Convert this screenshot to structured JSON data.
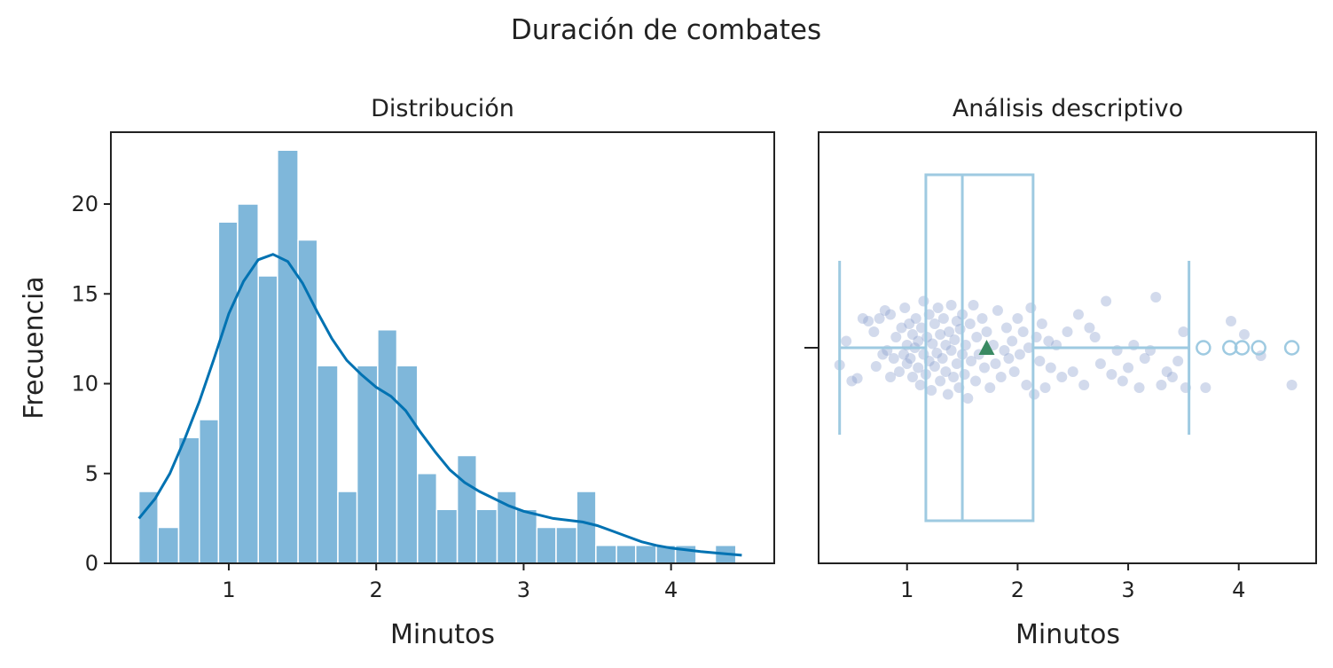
{
  "figure": {
    "suptitle": "Duración de combates"
  },
  "chart_data": [
    {
      "type": "bar",
      "panel": "left",
      "title": "Distribución",
      "xlabel": "Minutos",
      "ylabel": "Frecuencia",
      "xlim": [
        0.2,
        4.7
      ],
      "ylim": [
        0,
        24
      ],
      "xticks": [
        1,
        2,
        3,
        4
      ],
      "yticks": [
        0,
        5,
        10,
        15,
        20
      ],
      "bar_color": "#7fb7da",
      "bins": [
        {
          "x0": 0.39,
          "x1": 0.52,
          "count": 4
        },
        {
          "x0": 0.52,
          "x1": 0.66,
          "count": 2
        },
        {
          "x0": 0.66,
          "x1": 0.8,
          "count": 7
        },
        {
          "x0": 0.8,
          "x1": 0.93,
          "count": 8
        },
        {
          "x0": 0.93,
          "x1": 1.06,
          "count": 19
        },
        {
          "x0": 1.06,
          "x1": 1.2,
          "count": 20
        },
        {
          "x0": 1.2,
          "x1": 1.33,
          "count": 16
        },
        {
          "x0": 1.33,
          "x1": 1.47,
          "count": 23
        },
        {
          "x0": 1.47,
          "x1": 1.6,
          "count": 18
        },
        {
          "x0": 1.6,
          "x1": 1.74,
          "count": 11
        },
        {
          "x0": 1.74,
          "x1": 1.87,
          "count": 4
        },
        {
          "x0": 1.87,
          "x1": 2.01,
          "count": 11
        },
        {
          "x0": 2.01,
          "x1": 2.14,
          "count": 13
        },
        {
          "x0": 2.14,
          "x1": 2.28,
          "count": 11
        },
        {
          "x0": 2.28,
          "x1": 2.41,
          "count": 5
        },
        {
          "x0": 2.41,
          "x1": 2.55,
          "count": 3
        },
        {
          "x0": 2.55,
          "x1": 2.68,
          "count": 6
        },
        {
          "x0": 2.68,
          "x1": 2.82,
          "count": 3
        },
        {
          "x0": 2.82,
          "x1": 2.95,
          "count": 4
        },
        {
          "x0": 2.95,
          "x1": 3.09,
          "count": 3
        },
        {
          "x0": 3.09,
          "x1": 3.22,
          "count": 2
        },
        {
          "x0": 3.22,
          "x1": 3.36,
          "count": 2
        },
        {
          "x0": 3.36,
          "x1": 3.49,
          "count": 4
        },
        {
          "x0": 3.49,
          "x1": 3.63,
          "count": 1
        },
        {
          "x0": 3.63,
          "x1": 3.76,
          "count": 1
        },
        {
          "x0": 3.76,
          "x1": 3.9,
          "count": 1
        },
        {
          "x0": 3.9,
          "x1": 4.03,
          "count": 1
        },
        {
          "x0": 4.03,
          "x1": 4.17,
          "count": 1
        },
        {
          "x0": 4.17,
          "x1": 4.3,
          "count": 0
        },
        {
          "x0": 4.3,
          "x1": 4.44,
          "count": 1
        }
      ],
      "kde": {
        "color": "#0072b2",
        "x": [
          0.39,
          0.5,
          0.6,
          0.7,
          0.8,
          0.9,
          1.0,
          1.1,
          1.2,
          1.3,
          1.4,
          1.5,
          1.6,
          1.7,
          1.8,
          1.9,
          2.0,
          2.1,
          2.2,
          2.3,
          2.4,
          2.5,
          2.6,
          2.7,
          2.8,
          2.9,
          3.0,
          3.1,
          3.2,
          3.3,
          3.4,
          3.5,
          3.6,
          3.7,
          3.8,
          3.9,
          4.0,
          4.1,
          4.2,
          4.3,
          4.48
        ],
        "y": [
          2.5,
          3.6,
          5.0,
          6.9,
          9.0,
          11.4,
          13.9,
          15.7,
          16.9,
          17.2,
          16.8,
          15.6,
          14.0,
          12.5,
          11.3,
          10.5,
          9.8,
          9.3,
          8.5,
          7.3,
          6.2,
          5.2,
          4.5,
          4.0,
          3.6,
          3.2,
          2.9,
          2.7,
          2.5,
          2.4,
          2.3,
          2.1,
          1.8,
          1.5,
          1.2,
          1.0,
          0.85,
          0.75,
          0.65,
          0.58,
          0.45
        ]
      }
    },
    {
      "type": "box",
      "panel": "right",
      "title": "Análisis descriptivo",
      "xlabel": "Minutos",
      "xlim": [
        0.2,
        4.7
      ],
      "xticks": [
        1,
        2,
        3,
        4
      ],
      "box_color": "#9ecae1",
      "points_color": "#8a9fcc",
      "mean_color": "#3a8a62",
      "stats": {
        "whisker_low": 0.39,
        "q1": 1.17,
        "median": 1.5,
        "q3": 2.14,
        "whisker_high": 3.55,
        "mean": 1.72
      },
      "outliers": [
        3.68,
        3.92,
        4.03,
        4.18,
        4.48
      ],
      "jitter_points": [
        {
          "x": 0.39,
          "j": 0.13
        },
        {
          "x": 0.45,
          "j": -0.05
        },
        {
          "x": 0.5,
          "j": 0.25
        },
        {
          "x": 0.55,
          "j": 0.23
        },
        {
          "x": 0.6,
          "j": -0.22
        },
        {
          "x": 0.65,
          "j": -0.2
        },
        {
          "x": 0.7,
          "j": -0.12
        },
        {
          "x": 0.72,
          "j": 0.14
        },
        {
          "x": 0.75,
          "j": -0.22
        },
        {
          "x": 0.78,
          "j": 0.05
        },
        {
          "x": 0.8,
          "j": -0.28
        },
        {
          "x": 0.82,
          "j": 0.02
        },
        {
          "x": 0.85,
          "j": 0.22
        },
        {
          "x": 0.85,
          "j": -0.25
        },
        {
          "x": 0.88,
          "j": 0.08
        },
        {
          "x": 0.9,
          "j": -0.08
        },
        {
          "x": 0.93,
          "j": 0.18
        },
        {
          "x": 0.95,
          "j": -0.15
        },
        {
          "x": 0.97,
          "j": 0.05
        },
        {
          "x": 0.98,
          "j": -0.3
        },
        {
          "x": 1.0,
          "j": 0.12
        },
        {
          "x": 1.0,
          "j": -0.02
        },
        {
          "x": 1.02,
          "j": -0.18
        },
        {
          "x": 1.03,
          "j": 0.08
        },
        {
          "x": 1.05,
          "j": 0.22
        },
        {
          "x": 1.05,
          "j": -0.1
        },
        {
          "x": 1.07,
          "j": 0.0
        },
        {
          "x": 1.08,
          "j": -0.22
        },
        {
          "x": 1.1,
          "j": 0.15
        },
        {
          "x": 1.1,
          "j": -0.05
        },
        {
          "x": 1.12,
          "j": 0.28
        },
        {
          "x": 1.13,
          "j": -0.15
        },
        {
          "x": 1.15,
          "j": 0.05
        },
        {
          "x": 1.15,
          "j": -0.35
        },
        {
          "x": 1.17,
          "j": 0.2
        },
        {
          "x": 1.18,
          "j": -0.08
        },
        {
          "x": 1.2,
          "j": 0.1
        },
        {
          "x": 1.2,
          "j": -0.25
        },
        {
          "x": 1.22,
          "j": 0.32
        },
        {
          "x": 1.23,
          "j": -0.03
        },
        {
          "x": 1.25,
          "j": 0.14
        },
        {
          "x": 1.25,
          "j": -0.18
        },
        {
          "x": 1.27,
          "j": 0.04
        },
        {
          "x": 1.28,
          "j": -0.3
        },
        {
          "x": 1.3,
          "j": 0.25
        },
        {
          "x": 1.3,
          "j": -0.1
        },
        {
          "x": 1.32,
          "j": 0.08
        },
        {
          "x": 1.33,
          "j": -0.22
        },
        {
          "x": 1.35,
          "j": 0.18
        },
        {
          "x": 1.35,
          "j": -0.02
        },
        {
          "x": 1.37,
          "j": 0.35
        },
        {
          "x": 1.38,
          "j": -0.12
        },
        {
          "x": 1.4,
          "j": 0.02
        },
        {
          "x": 1.4,
          "j": -0.32
        },
        {
          "x": 1.42,
          "j": 0.22
        },
        {
          "x": 1.43,
          "j": -0.06
        },
        {
          "x": 1.45,
          "j": 0.12
        },
        {
          "x": 1.45,
          "j": -0.2
        },
        {
          "x": 1.47,
          "j": 0.3
        },
        {
          "x": 1.48,
          "j": -0.14
        },
        {
          "x": 1.5,
          "j": 0.05
        },
        {
          "x": 1.5,
          "j": -0.25
        },
        {
          "x": 1.52,
          "j": 0.2
        },
        {
          "x": 1.53,
          "j": -0.02
        },
        {
          "x": 1.55,
          "j": 0.38
        },
        {
          "x": 1.57,
          "j": -0.18
        },
        {
          "x": 1.58,
          "j": 0.1
        },
        {
          "x": 1.6,
          "j": -0.32
        },
        {
          "x": 1.62,
          "j": 0.25
        },
        {
          "x": 1.63,
          "j": -0.08
        },
        {
          "x": 1.65,
          "j": 0.05
        },
        {
          "x": 1.68,
          "j": -0.22
        },
        {
          "x": 1.7,
          "j": 0.15
        },
        {
          "x": 1.72,
          "j": -0.12
        },
        {
          "x": 1.75,
          "j": 0.3
        },
        {
          "x": 1.78,
          "j": -0.02
        },
        {
          "x": 1.8,
          "j": 0.12
        },
        {
          "x": 1.82,
          "j": -0.28
        },
        {
          "x": 1.85,
          "j": 0.22
        },
        {
          "x": 1.88,
          "j": 0.02
        },
        {
          "x": 1.9,
          "j": -0.15
        },
        {
          "x": 1.92,
          "j": 0.08
        },
        {
          "x": 1.95,
          "j": -0.05
        },
        {
          "x": 1.97,
          "j": 0.18
        },
        {
          "x": 2.0,
          "j": -0.22
        },
        {
          "x": 2.02,
          "j": 0.05
        },
        {
          "x": 2.05,
          "j": -0.12
        },
        {
          "x": 2.08,
          "j": 0.28
        },
        {
          "x": 2.1,
          "j": 0.0
        },
        {
          "x": 2.12,
          "j": -0.3
        },
        {
          "x": 2.15,
          "j": 0.35
        },
        {
          "x": 2.17,
          "j": -0.08
        },
        {
          "x": 2.2,
          "j": 0.1
        },
        {
          "x": 2.22,
          "j": -0.18
        },
        {
          "x": 2.25,
          "j": 0.3
        },
        {
          "x": 2.28,
          "j": -0.05
        },
        {
          "x": 2.3,
          "j": 0.15
        },
        {
          "x": 2.35,
          "j": -0.02
        },
        {
          "x": 2.4,
          "j": 0.22
        },
        {
          "x": 2.45,
          "j": -0.12
        },
        {
          "x": 2.5,
          "j": 0.18
        },
        {
          "x": 2.55,
          "j": -0.25
        },
        {
          "x": 2.6,
          "j": 0.28
        },
        {
          "x": 2.65,
          "j": -0.15
        },
        {
          "x": 2.7,
          "j": -0.08
        },
        {
          "x": 2.75,
          "j": 0.12
        },
        {
          "x": 2.8,
          "j": -0.35
        },
        {
          "x": 2.85,
          "j": 0.2
        },
        {
          "x": 2.9,
          "j": 0.02
        },
        {
          "x": 2.95,
          "j": 0.25
        },
        {
          "x": 3.0,
          "j": 0.15
        },
        {
          "x": 3.05,
          "j": -0.02
        },
        {
          "x": 3.1,
          "j": 0.3
        },
        {
          "x": 3.15,
          "j": 0.08
        },
        {
          "x": 3.2,
          "j": 0.02
        },
        {
          "x": 3.25,
          "j": -0.38
        },
        {
          "x": 3.3,
          "j": 0.28
        },
        {
          "x": 3.35,
          "j": 0.18
        },
        {
          "x": 3.4,
          "j": 0.22
        },
        {
          "x": 3.45,
          "j": 0.1
        },
        {
          "x": 3.5,
          "j": -0.12
        },
        {
          "x": 3.52,
          "j": 0.3
        },
        {
          "x": 3.7,
          "j": 0.3
        },
        {
          "x": 3.93,
          "j": -0.2
        },
        {
          "x": 4.05,
          "j": -0.1
        },
        {
          "x": 4.2,
          "j": 0.06
        },
        {
          "x": 4.48,
          "j": 0.28
        }
      ]
    }
  ]
}
